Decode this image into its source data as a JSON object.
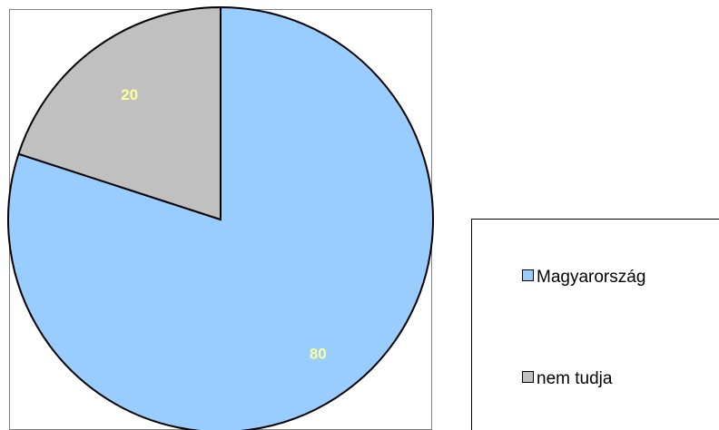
{
  "chart_data": {
    "type": "pie",
    "categories": [
      "Magyarország",
      "nem tudja"
    ],
    "values": [
      80,
      20
    ],
    "data_labels": [
      "80",
      "20"
    ],
    "colors": [
      "#99ccff",
      "#c0c0c0"
    ],
    "label_color": "#ffff99",
    "legend_position": "right",
    "start_angle": "12 o'clock",
    "direction": "clockwise"
  }
}
